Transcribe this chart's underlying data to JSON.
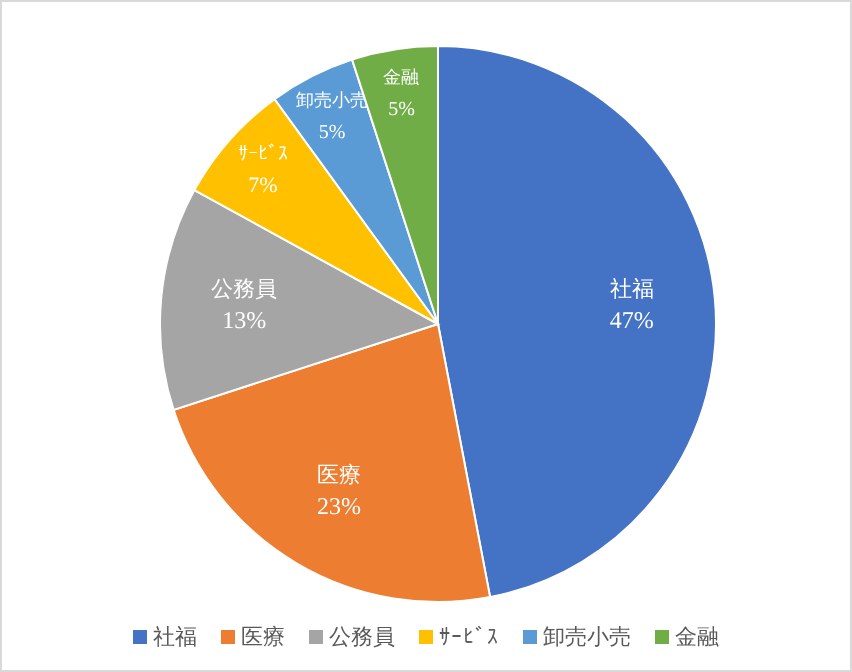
{
  "chart_data": {
    "type": "pie",
    "categories": [
      "社福",
      "医療",
      "公務員",
      "ｻｰﾋﾞｽ",
      "卸売小売",
      "金融"
    ],
    "values": [
      47,
      23,
      13,
      7,
      5,
      5
    ],
    "value_labels": [
      "47%",
      "23%",
      "13%",
      "7%",
      "5%",
      "5%"
    ],
    "colors": [
      "#4472c4",
      "#ed7d31",
      "#a5a5a5",
      "#ffc000",
      "#5b9bd5",
      "#70ad47"
    ],
    "legend": "bottom"
  }
}
